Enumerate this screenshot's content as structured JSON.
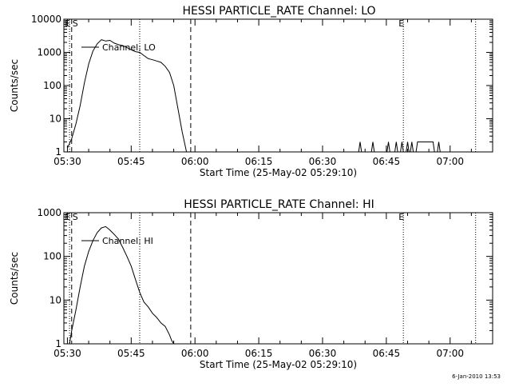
{
  "footer_date": "6-Jan-2010 13:53",
  "chart_data": [
    {
      "type": "line",
      "title": "HESSI PARTICLE_RATE Channel: LO",
      "xlabel": "Start Time (25-May-02 05:29:10)",
      "ylabel": "Counts/sec",
      "y_scale": "log",
      "ylim": [
        1,
        10000
      ],
      "y_ticks": [
        {
          "value": 1,
          "label": "1"
        },
        {
          "value": 10,
          "label": "10"
        },
        {
          "value": 100,
          "label": "100"
        },
        {
          "value": 1000,
          "label": "1000"
        },
        {
          "value": 10000,
          "label": "10000"
        }
      ],
      "xlim": [
        "05:29:10",
        "07:10:00"
      ],
      "x_ticks": [
        "05:30",
        "05:45",
        "06:00",
        "06:15",
        "06:30",
        "06:45",
        "07:00"
      ],
      "legend": {
        "label": "Channel: LO",
        "placement": "top-left"
      },
      "markers": [
        {
          "time": "05:31",
          "style": "dashed",
          "label": "S"
        },
        {
          "time": "05:30:30",
          "style": "dotted",
          "label": "E"
        },
        {
          "time": "05:47",
          "style": "dotted",
          "label": ""
        },
        {
          "time": "05:59",
          "style": "dashed",
          "label": ""
        },
        {
          "time": "06:49",
          "style": "dotted",
          "label": "E"
        },
        {
          "time": "07:06",
          "style": "dotted",
          "label": ""
        }
      ],
      "series": [
        {
          "name": "Channel: LO",
          "x": [
            "05:30:00",
            "05:31:00",
            "05:32:00",
            "05:33:00",
            "05:34:00",
            "05:35:00",
            "05:36:00",
            "05:37:00",
            "05:38:00",
            "05:39:00",
            "05:40:00",
            "05:41:00",
            "05:42:00",
            "05:43:00",
            "05:44:00",
            "05:45:00",
            "05:46:00",
            "05:47:00",
            "05:48:00",
            "05:49:00",
            "05:50:00",
            "05:51:00",
            "05:52:00",
            "05:53:00",
            "05:54:00",
            "05:55:00",
            "05:56:00",
            "05:57:00",
            "05:57:30",
            "05:58:00"
          ],
          "y": [
            1.3,
            2.5,
            7,
            25,
            120,
            450,
            1100,
            1800,
            2400,
            2200,
            2300,
            1900,
            1700,
            1600,
            1400,
            1200,
            1050,
            1000,
            800,
            650,
            600,
            550,
            500,
            380,
            250,
            100,
            20,
            4,
            2,
            1
          ]
        },
        {
          "name": "",
          "x": [
            "06:38:30",
            "06:38:50",
            "06:39:10",
            "06:41:30",
            "06:41:50",
            "06:42:10",
            "06:45:10",
            "06:45:30",
            "06:45:50",
            "06:47:00",
            "06:47:20",
            "06:47:40",
            "06:48:20",
            "06:48:40",
            "06:49:00",
            "06:49:40",
            "06:50:00",
            "06:50:20",
            "06:50:40",
            "06:51:00",
            "06:51:20",
            "06:52:00",
            "06:52:20",
            "06:52:40",
            "06:56:00",
            "06:56:20",
            "06:57:00",
            "06:57:20",
            "06:57:40"
          ],
          "y": [
            1,
            2,
            1,
            1,
            2,
            1,
            1,
            2,
            1,
            1,
            2,
            1,
            1,
            2,
            1,
            1,
            2,
            1,
            1,
            2,
            1,
            1,
            2,
            2,
            2,
            1,
            1,
            2,
            1
          ]
        }
      ]
    },
    {
      "type": "line",
      "title": "HESSI PARTICLE_RATE Channel: HI",
      "xlabel": "Start Time (25-May-02 05:29:10)",
      "ylabel": "Counts/sec",
      "y_scale": "log",
      "ylim": [
        1,
        1000
      ],
      "y_ticks": [
        {
          "value": 1,
          "label": "1"
        },
        {
          "value": 10,
          "label": "10"
        },
        {
          "value": 100,
          "label": "100"
        },
        {
          "value": 1000,
          "label": "1000"
        }
      ],
      "xlim": [
        "05:29:10",
        "07:10:00"
      ],
      "x_ticks": [
        "05:30",
        "05:45",
        "06:00",
        "06:15",
        "06:30",
        "06:45",
        "07:00"
      ],
      "legend": {
        "label": "Channel: HI",
        "placement": "top-left"
      },
      "markers": [
        {
          "time": "05:31",
          "style": "dashed",
          "label": "S"
        },
        {
          "time": "05:30:30",
          "style": "dotted",
          "label": "E"
        },
        {
          "time": "05:47",
          "style": "dotted",
          "label": ""
        },
        {
          "time": "05:59",
          "style": "dashed",
          "label": ""
        },
        {
          "time": "06:49",
          "style": "dotted",
          "label": "E"
        },
        {
          "time": "07:06",
          "style": "dotted",
          "label": ""
        }
      ],
      "series": [
        {
          "name": "Channel: HI",
          "x": [
            "05:30:30",
            "05:31:00",
            "05:32:00",
            "05:33:00",
            "05:34:00",
            "05:35:00",
            "05:36:00",
            "05:37:00",
            "05:38:00",
            "05:39:00",
            "05:40:00",
            "05:41:00",
            "05:42:00",
            "05:43:00",
            "05:44:00",
            "05:45:00",
            "05:46:00",
            "05:47:00",
            "05:48:00",
            "05:49:00",
            "05:50:00",
            "05:51:00",
            "05:52:00",
            "05:53:00",
            "05:54:00",
            "05:54:30",
            "05:55:00"
          ],
          "y": [
            1,
            2,
            6,
            20,
            60,
            130,
            230,
            350,
            450,
            480,
            400,
            320,
            250,
            160,
            100,
            60,
            30,
            15,
            9,
            7,
            5,
            4,
            3,
            2.5,
            1.6,
            1.2,
            1
          ]
        }
      ]
    }
  ]
}
